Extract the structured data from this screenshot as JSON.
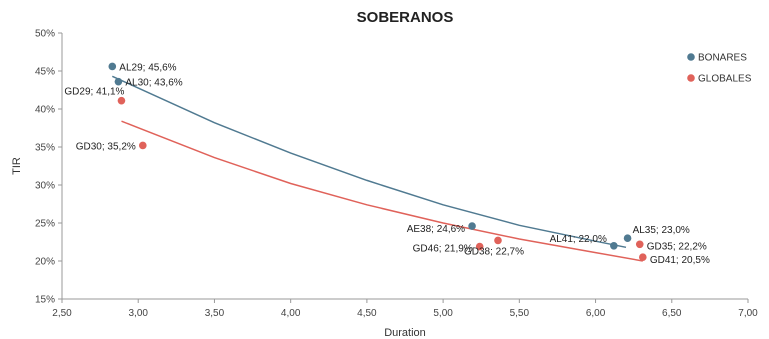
{
  "chart_data": {
    "type": "scatter",
    "title": "SOBERANOS",
    "xlabel": "Duration",
    "ylabel": "TIR",
    "xlim": [
      2.5,
      7.0
    ],
    "ylim": [
      0.15,
      0.5
    ],
    "x_ticks": [
      "2,50",
      "3,00",
      "3,50",
      "4,00",
      "4,50",
      "5,00",
      "5,50",
      "6,00",
      "6,50",
      "7,00"
    ],
    "y_ticks": [
      "15%",
      "20%",
      "25%",
      "30%",
      "35%",
      "40%",
      "45%",
      "50%"
    ],
    "legend_position": "top-right",
    "grid": false,
    "series": [
      {
        "name": "BONARES",
        "color": "#507a91",
        "points": [
          {
            "label": "AL29; 45,6%",
            "x": 2.83,
            "y": 0.456
          },
          {
            "label": "AL30; 43,6%",
            "x": 2.87,
            "y": 0.436
          },
          {
            "label": "AE38; 24,6%",
            "x": 5.19,
            "y": 0.246
          },
          {
            "label": "AL41; 22,0%",
            "x": 6.12,
            "y": 0.22
          },
          {
            "label": "AL35; 23,0%",
            "x": 6.21,
            "y": 0.23
          }
        ],
        "trend": [
          [
            2.83,
            0.443
          ],
          [
            3.5,
            0.382
          ],
          [
            4.0,
            0.342
          ],
          [
            4.5,
            0.306
          ],
          [
            5.0,
            0.274
          ],
          [
            5.5,
            0.247
          ],
          [
            6.0,
            0.226
          ],
          [
            6.2,
            0.218
          ]
        ]
      },
      {
        "name": "GLOBALES",
        "color": "#e0625a",
        "points": [
          {
            "label": "GD29; 41,1%",
            "x": 2.89,
            "y": 0.411
          },
          {
            "label": "GD30; 35,2%",
            "x": 3.03,
            "y": 0.352
          },
          {
            "label": "GD46; 21,9%",
            "x": 5.24,
            "y": 0.219
          },
          {
            "label": "GD38; 22,7%",
            "x": 5.36,
            "y": 0.227
          },
          {
            "label": "GD35; 22,2%",
            "x": 6.29,
            "y": 0.222
          },
          {
            "label": "GD41; 20,5%",
            "x": 6.31,
            "y": 0.205
          }
        ],
        "trend": [
          [
            2.89,
            0.384
          ],
          [
            3.5,
            0.336
          ],
          [
            4.0,
            0.302
          ],
          [
            4.5,
            0.274
          ],
          [
            5.0,
            0.25
          ],
          [
            5.5,
            0.229
          ],
          [
            6.0,
            0.211
          ],
          [
            6.31,
            0.2
          ]
        ]
      }
    ]
  }
}
